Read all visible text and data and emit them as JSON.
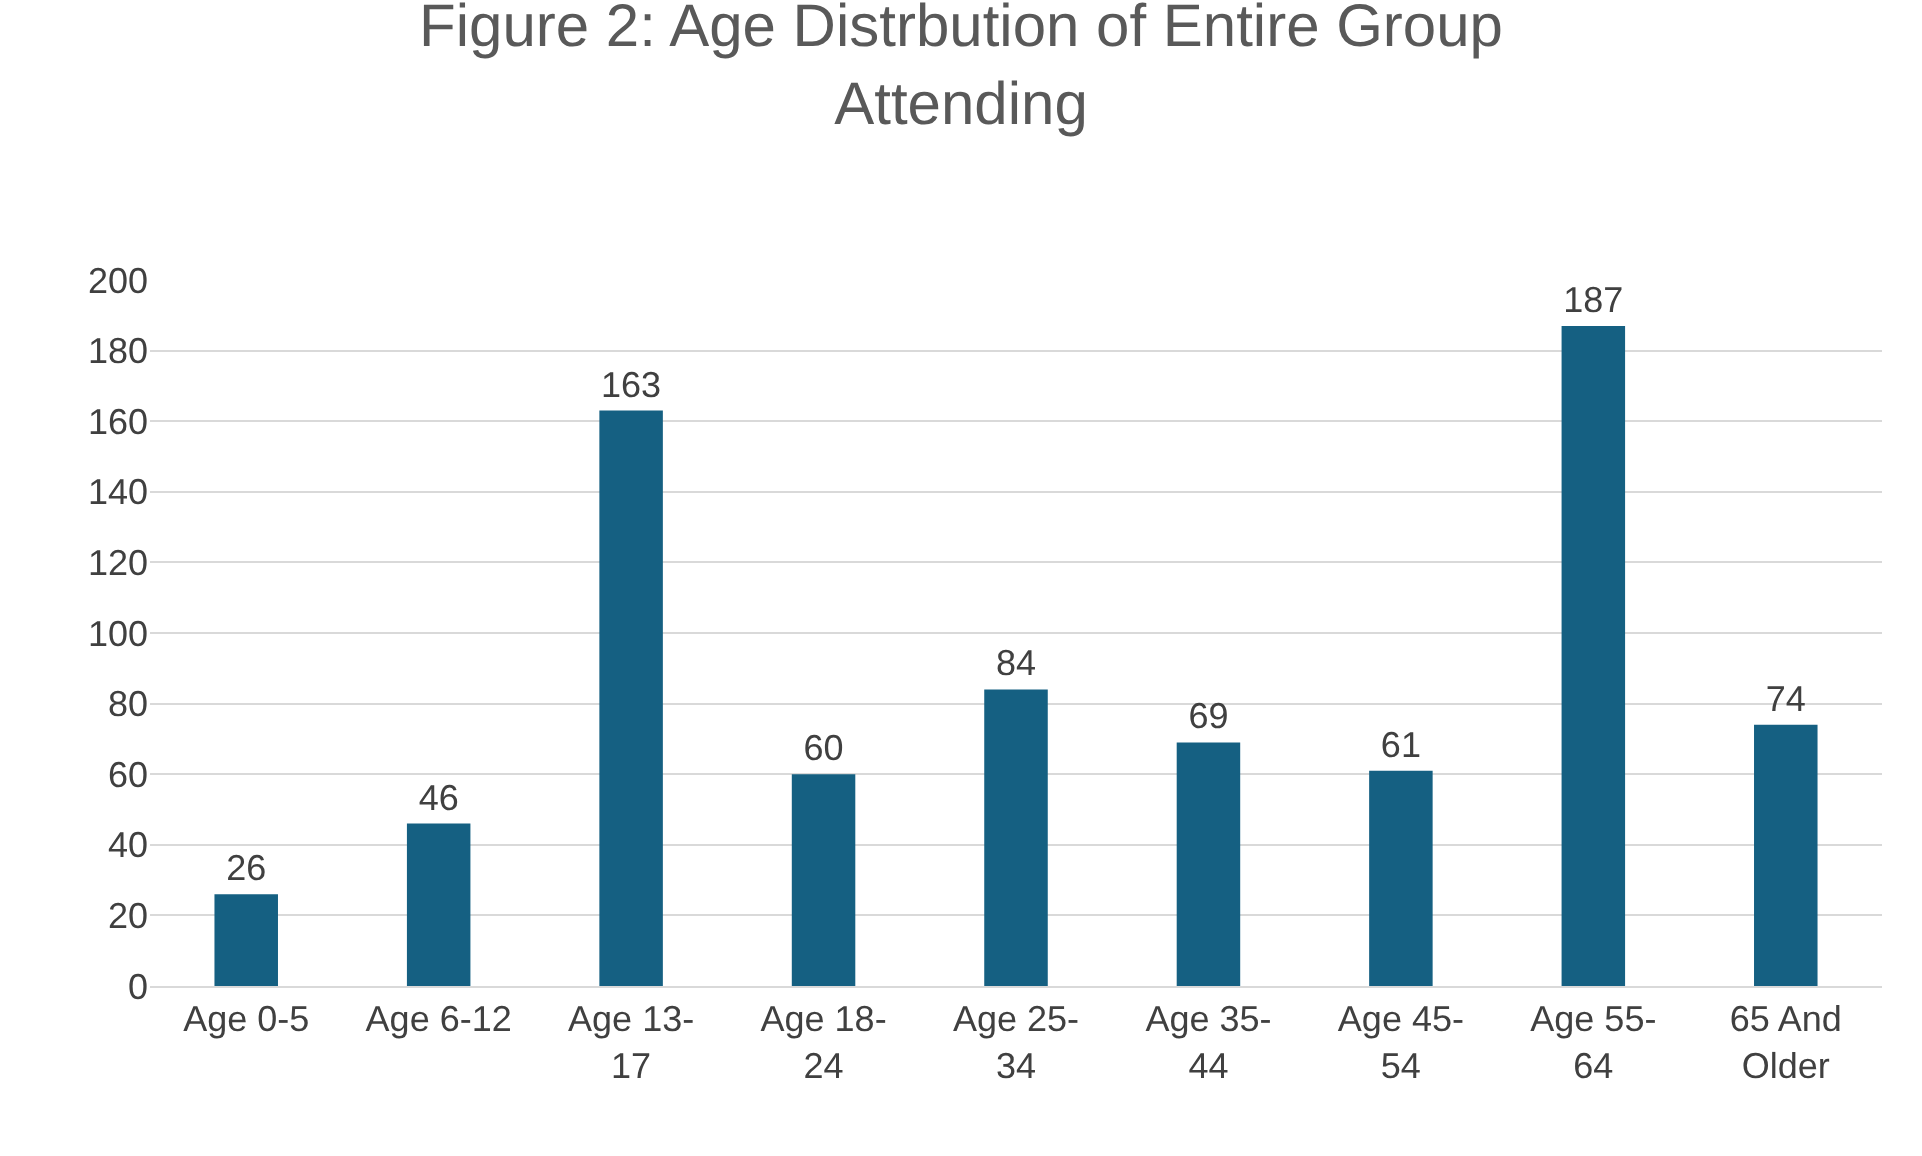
{
  "chart_data": {
    "type": "bar",
    "title": "Figure 2: Age Distrbution of Entire Group Attending",
    "categories": [
      "Age 0-5",
      "Age 6-12",
      "Age 13-17",
      "Age 18-24",
      "Age 25-34",
      "Age 35-44",
      "Age 45-54",
      "Age 55-64",
      "65 And Older"
    ],
    "values": [
      26,
      46,
      163,
      60,
      84,
      69,
      61,
      187,
      74
    ],
    "color": "#156082",
    "ylim": [
      0,
      200
    ],
    "yticks": [
      0,
      20,
      40,
      60,
      80,
      100,
      120,
      140,
      160,
      180,
      200
    ],
    "grid": "y",
    "data_labels": true
  }
}
